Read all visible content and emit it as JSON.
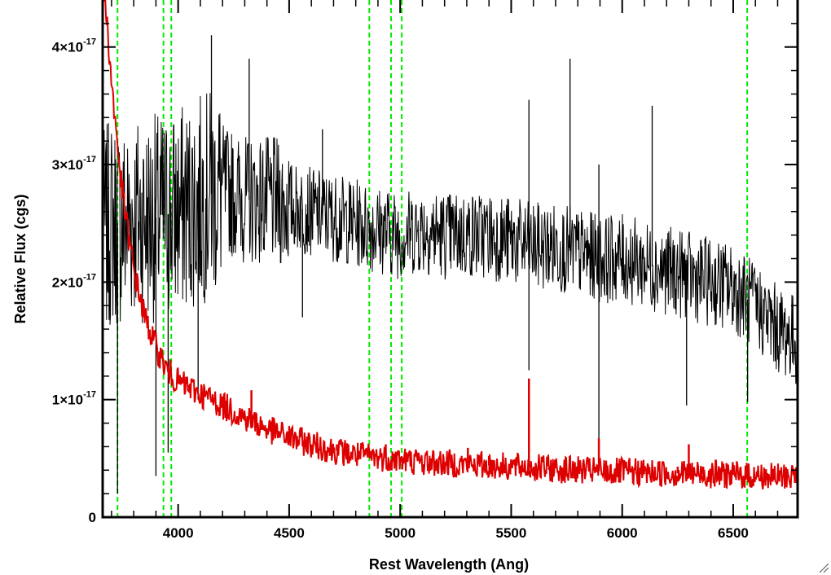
{
  "chart_data": {
    "type": "line",
    "xlabel": "Rest Wavelength (Ang)",
    "ylabel": "Relative Flux (cgs)",
    "xlim": [
      3660,
      6790
    ],
    "ylim": [
      0,
      4.4e-17
    ],
    "x_ticks": [
      {
        "value": 4000,
        "label": "4000"
      },
      {
        "value": 4500,
        "label": "4500"
      },
      {
        "value": 5000,
        "label": "5000"
      },
      {
        "value": 5500,
        "label": "5500"
      },
      {
        "value": 6000,
        "label": "6000"
      },
      {
        "value": 6500,
        "label": "6500"
      }
    ],
    "y_ticks": [
      {
        "value": 0,
        "mantissa": "0",
        "exponent": ""
      },
      {
        "value": 1e-17,
        "mantissa": "1×10",
        "exponent": "-17"
      },
      {
        "value": 2e-17,
        "mantissa": "2×10",
        "exponent": "-17"
      },
      {
        "value": 3e-17,
        "mantissa": "3×10",
        "exponent": "-17"
      },
      {
        "value": 4e-17,
        "mantissa": "4×10",
        "exponent": "-17"
      }
    ],
    "reference_lines": {
      "color": "#00ee00",
      "style": "dashed",
      "x": [
        3727,
        3934,
        3969,
        4861,
        4959,
        5007,
        6563
      ]
    },
    "series": [
      {
        "color": "#000000",
        "style": "noisy",
        "x": [
          3660,
          3700,
          3750,
          3800,
          3900,
          4000,
          4100,
          4200,
          4300,
          4400,
          4500,
          4600,
          4700,
          4800,
          4900,
          5000,
          5100,
          5200,
          5300,
          5400,
          5500,
          5600,
          5700,
          5800,
          5900,
          6000,
          6100,
          6200,
          6300,
          6400,
          6500,
          6600,
          6700,
          6790
        ],
        "y": [
          2.4e-17,
          2.5e-17,
          2.5e-17,
          2.55e-17,
          2.55e-17,
          2.6e-17,
          2.7e-17,
          2.8e-17,
          2.7e-17,
          2.7e-17,
          2.65e-17,
          2.6e-17,
          2.55e-17,
          2.5e-17,
          2.45e-17,
          2.4e-17,
          2.45e-17,
          2.4e-17,
          2.4e-17,
          2.4e-17,
          2.35e-17,
          2.3e-17,
          2.3e-17,
          2.25e-17,
          2.2e-17,
          2.2e-17,
          2.15e-17,
          2.1e-17,
          2.05e-17,
          2e-17,
          1.95e-17,
          1.8e-17,
          1.6e-17,
          1.5e-17
        ]
      },
      {
        "color": "#dd0000",
        "style": "smooth",
        "x": [
          3660,
          3680,
          3700,
          3720,
          3740,
          3760,
          3800,
          3850,
          3900,
          3950,
          4000,
          4100,
          4200,
          4300,
          4400,
          4500,
          4600,
          4700,
          4800,
          4900,
          5000,
          5100,
          5200,
          5300,
          5400,
          5500,
          5600,
          5700,
          5800,
          5900,
          6000,
          6100,
          6200,
          6300,
          6400,
          6500,
          6600,
          6700,
          6790
        ],
        "y": [
          4.6e-17,
          4.2e-17,
          3.7e-17,
          3.3e-17,
          2.9e-17,
          2.6e-17,
          2.1e-17,
          1.7e-17,
          1.45e-17,
          1.25e-17,
          1.15e-17,
          1.05e-17,
          9.5e-18,
          8.5e-18,
          7.5e-18,
          6.8e-18,
          6.2e-18,
          5.7e-18,
          5.3e-18,
          5.1e-18,
          4.9e-18,
          4.7e-18,
          4.6e-18,
          4.5e-18,
          4.4e-18,
          4.3e-18,
          4.2e-18,
          4.1e-18,
          4e-18,
          3.9e-18,
          3.85e-18,
          3.8e-18,
          3.75e-18,
          3.7e-18,
          3.65e-18,
          3.6e-18,
          3.5e-18,
          3.4e-18,
          3.6e-18
        ]
      }
    ],
    "red_emission_spikes": [
      {
        "x": 4330,
        "y": 1.08e-17
      },
      {
        "x": 4715,
        "y": 6.2e-18
      },
      {
        "x": 4935,
        "y": 6.2e-18
      },
      {
        "x": 5305,
        "y": 5.9e-18
      },
      {
        "x": 5400,
        "y": 5.2e-18
      },
      {
        "x": 5580,
        "y": 1.18e-17
      },
      {
        "x": 5895,
        "y": 6.7e-18
      },
      {
        "x": 6250,
        "y": 4.3e-18
      },
      {
        "x": 6300,
        "y": 6.2e-18
      },
      {
        "x": 6365,
        "y": 4.3e-18
      },
      {
        "x": 6470,
        "y": 4.6e-18
      },
      {
        "x": 6500,
        "y": 4.2e-18
      }
    ],
    "black_spikes": [
      {
        "x": 4150,
        "y": 4.1e-17
      },
      {
        "x": 4320,
        "y": 3.9e-17
      },
      {
        "x": 5580,
        "y": 3.55e-17
      },
      {
        "x": 5765,
        "y": 3.9e-17
      },
      {
        "x": 5895,
        "y": 3e-17
      },
      {
        "x": 6135,
        "y": 3.5e-17
      },
      {
        "x": 4650,
        "y": 3.3e-17
      }
    ],
    "black_dips": [
      {
        "x": 3727,
        "y": 2e-18
      },
      {
        "x": 3900,
        "y": 3.5e-18
      },
      {
        "x": 3955,
        "y": 5.5e-18
      },
      {
        "x": 4090,
        "y": 1e-17
      },
      {
        "x": 4560,
        "y": 1.7e-17
      },
      {
        "x": 5580,
        "y": 1.25e-17
      },
      {
        "x": 5895,
        "y": 5e-18
      },
      {
        "x": 6290,
        "y": 9.5e-18
      },
      {
        "x": 6565,
        "y": 9.8e-18
      }
    ],
    "grid": false,
    "legend": "none"
  }
}
